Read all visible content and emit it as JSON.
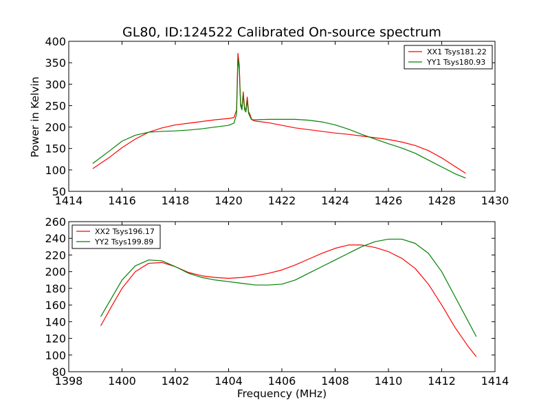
{
  "chart_data": [
    {
      "type": "line",
      "title": "GL80, ID:124522 Calibrated On-source spectrum",
      "xlabel": "",
      "ylabel": "Power in Kelvin",
      "xlim": [
        1414,
        1430
      ],
      "ylim": [
        50,
        400
      ],
      "xticks": [
        "1414",
        "1416",
        "1418",
        "1420",
        "1422",
        "1424",
        "1426",
        "1428",
        "1430"
      ],
      "yticks": [
        "50",
        "100",
        "150",
        "200",
        "250",
        "300",
        "350",
        "400"
      ],
      "legend_position": "top-right",
      "grid": false,
      "series": [
        {
          "name": "XX1 Tsys181.22",
          "color": "#ff0000",
          "x": [
            1414.9,
            1415.5,
            1416.0,
            1416.5,
            1417.0,
            1417.5,
            1418.0,
            1418.5,
            1419.0,
            1419.5,
            1420.0,
            1420.2,
            1420.3,
            1420.35,
            1420.4,
            1420.45,
            1420.5,
            1420.55,
            1420.6,
            1420.65,
            1420.7,
            1420.75,
            1420.8,
            1420.85,
            1420.9,
            1421.0,
            1421.5,
            1422.0,
            1422.5,
            1423.0,
            1423.5,
            1424.0,
            1424.5,
            1425.0,
            1425.5,
            1426.0,
            1426.5,
            1427.0,
            1427.5,
            1428.0,
            1428.5,
            1428.9
          ],
          "y": [
            103,
            128,
            152,
            172,
            188,
            198,
            205,
            209,
            213,
            217,
            220,
            222,
            240,
            372,
            345,
            255,
            245,
            282,
            245,
            240,
            270,
            236,
            230,
            220,
            216,
            214,
            210,
            204,
            198,
            194,
            190,
            186,
            183,
            179,
            175,
            171,
            165,
            157,
            145,
            128,
            108,
            92
          ]
        },
        {
          "name": "YY1 Tsys180.93",
          "color": "#008000",
          "x": [
            1414.9,
            1415.5,
            1416.0,
            1416.5,
            1417.0,
            1417.5,
            1418.0,
            1418.5,
            1419.0,
            1419.5,
            1420.0,
            1420.2,
            1420.3,
            1420.35,
            1420.4,
            1420.45,
            1420.5,
            1420.55,
            1420.6,
            1420.65,
            1420.7,
            1420.75,
            1420.8,
            1420.85,
            1420.9,
            1421.0,
            1421.5,
            1422.0,
            1422.5,
            1423.0,
            1423.5,
            1424.0,
            1424.5,
            1425.0,
            1425.5,
            1426.0,
            1426.5,
            1427.0,
            1427.5,
            1428.0,
            1428.5,
            1428.9
          ],
          "y": [
            115,
            143,
            167,
            181,
            188,
            190,
            191,
            193,
            196,
            200,
            204,
            209,
            230,
            360,
            335,
            250,
            240,
            275,
            240,
            235,
            262,
            232,
            225,
            218,
            217,
            217,
            218,
            218,
            218,
            216,
            212,
            205,
            195,
            183,
            172,
            161,
            151,
            139,
            123,
            107,
            91,
            81
          ]
        }
      ]
    },
    {
      "type": "line",
      "title": "",
      "xlabel": "Frequency (MHz)",
      "ylabel": "",
      "xlim": [
        1398,
        1414
      ],
      "ylim": [
        80,
        260
      ],
      "xticks": [
        "1398",
        "1400",
        "1402",
        "1404",
        "1406",
        "1408",
        "1410",
        "1412",
        "1414"
      ],
      "yticks": [
        "80",
        "100",
        "120",
        "140",
        "160",
        "180",
        "200",
        "220",
        "240",
        "260"
      ],
      "legend_position": "top-left",
      "grid": false,
      "series": [
        {
          "name": "XX2 Tsys196.17",
          "color": "#ff0000",
          "x": [
            1399.2,
            1399.6,
            1400.0,
            1400.5,
            1401.0,
            1401.5,
            1402.0,
            1402.5,
            1403.0,
            1403.5,
            1404.0,
            1404.5,
            1405.0,
            1405.5,
            1406.0,
            1406.5,
            1407.0,
            1407.5,
            1408.0,
            1408.5,
            1409.0,
            1409.5,
            1410.0,
            1410.5,
            1411.0,
            1411.5,
            1412.0,
            1412.5,
            1413.0,
            1413.3
          ],
          "y": [
            135,
            158,
            180,
            200,
            210,
            211,
            206,
            199,
            195,
            193,
            192,
            193,
            195,
            198,
            202,
            208,
            215,
            222,
            228,
            232,
            232,
            229,
            224,
            216,
            204,
            185,
            160,
            133,
            110,
            98
          ]
        },
        {
          "name": "YY2 Tsys199.89",
          "color": "#008000",
          "x": [
            1399.2,
            1399.6,
            1400.0,
            1400.5,
            1401.0,
            1401.5,
            1402.0,
            1402.5,
            1403.0,
            1403.5,
            1404.0,
            1404.5,
            1405.0,
            1405.5,
            1406.0,
            1406.5,
            1407.0,
            1407.5,
            1408.0,
            1408.5,
            1409.0,
            1409.5,
            1410.0,
            1410.5,
            1411.0,
            1411.5,
            1412.0,
            1412.5,
            1413.0,
            1413.3
          ],
          "y": [
            146,
            168,
            190,
            207,
            214,
            213,
            206,
            198,
            193,
            190,
            188,
            186,
            184,
            184,
            185,
            190,
            198,
            206,
            214,
            222,
            230,
            236,
            239,
            239,
            234,
            222,
            200,
            170,
            140,
            122
          ]
        }
      ]
    }
  ]
}
